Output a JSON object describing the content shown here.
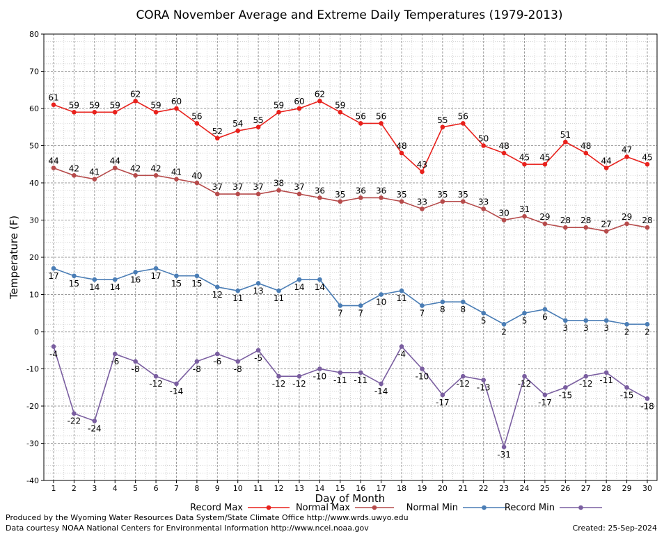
{
  "chart_data": {
    "type": "line",
    "title": "CORA November Average and Extreme Daily Temperatures (1979-2013)",
    "xlabel": "Day of Month",
    "ylabel": "Temperature (F)",
    "ylim": [
      -40,
      80
    ],
    "yticks": [
      -40,
      -30,
      -20,
      -10,
      0,
      10,
      20,
      30,
      40,
      50,
      60,
      70,
      80
    ],
    "x": [
      1,
      2,
      3,
      4,
      5,
      6,
      7,
      8,
      9,
      10,
      11,
      12,
      13,
      14,
      15,
      16,
      17,
      18,
      19,
      20,
      21,
      22,
      23,
      24,
      25,
      26,
      27,
      28,
      29,
      30
    ],
    "grid": true,
    "legend_position": "bottom",
    "series": [
      {
        "name": "Record Max",
        "color": "#e8211c",
        "label_pos": "above",
        "values": [
          61,
          59,
          59,
          59,
          62,
          59,
          60,
          56,
          52,
          54,
          55,
          59,
          60,
          62,
          59,
          56,
          56,
          48,
          43,
          55,
          56,
          50,
          48,
          45,
          45,
          51,
          48,
          44,
          47,
          45
        ]
      },
      {
        "name": "Normal Max",
        "color": "#b64b4b",
        "label_pos": "above",
        "values": [
          44,
          42,
          41,
          44,
          42,
          42,
          41,
          40,
          37,
          37,
          37,
          38,
          37,
          36,
          35,
          36,
          36,
          35,
          33,
          35,
          35,
          33,
          30,
          31,
          29,
          28,
          28,
          27,
          29,
          28
        ]
      },
      {
        "name": "Normal Min",
        "color": "#4a7db5",
        "label_pos": "below",
        "values": [
          17,
          15,
          14,
          14,
          16,
          17,
          15,
          15,
          12,
          11,
          13,
          11,
          14,
          14,
          7,
          7,
          10,
          11,
          7,
          8,
          8,
          5,
          2,
          5,
          6,
          3,
          3,
          3,
          2,
          2
        ]
      },
      {
        "name": "Record Min",
        "color": "#7a5ea0",
        "label_pos": "below",
        "values": [
          -4,
          -22,
          -24,
          -6,
          -8,
          -12,
          -14,
          -8,
          -6,
          -8,
          -5,
          -12,
          -12,
          -10,
          -11,
          -11,
          -14,
          -4,
          -10,
          -17,
          -12,
          -13,
          -31,
          -12,
          -17,
          -15,
          -12,
          -11,
          -15,
          -18
        ]
      }
    ]
  },
  "footer": {
    "producer": "Produced by the Wyoming Water Resources Data System/State Climate Office http://www.wrds.uwyo.edu",
    "courtesy": "Data courtesy NOAA National Centers for Environmental Information http://www.ncei.noaa.gov",
    "created": "Created: 25-Sep-2024"
  }
}
